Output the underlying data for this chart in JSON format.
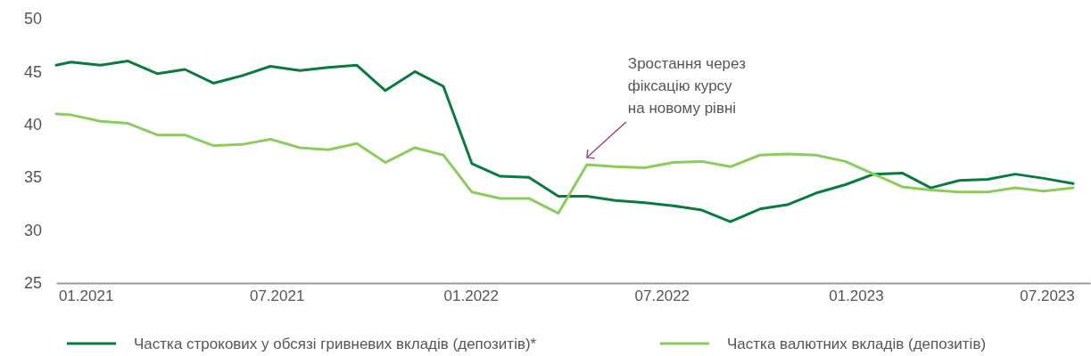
{
  "chart_data": {
    "type": "line",
    "x": [
      "2020-12-04",
      "2020-12-18",
      "2021-01-15",
      "2021-02-10",
      "2021-03-10",
      "2021-04-05",
      "2021-05-02",
      "2021-05-29",
      "2021-06-25",
      "2021-07-23",
      "2021-08-19",
      "2021-09-15",
      "2021-10-12",
      "2021-11-09",
      "2021-12-06",
      "2022-01-02",
      "2022-01-29",
      "2022-02-25",
      "2022-03-25",
      "2022-04-21",
      "2022-05-18",
      "2022-06-15",
      "2022-07-12",
      "2022-08-08",
      "2022-09-04",
      "2022-10-02",
      "2022-10-28",
      "2022-11-24",
      "2022-12-22",
      "2023-01-18",
      "2023-02-14",
      "2023-03-13",
      "2023-04-09",
      "2023-05-06",
      "2023-06-01",
      "2023-06-28",
      "2023-07-26"
    ],
    "series": [
      {
        "name": "Частка строкових у обсязі гривневих вкладів (депозитів)*",
        "color": "#0a7a3f",
        "values": [
          45.6,
          45.9,
          45.6,
          46.0,
          44.8,
          45.2,
          43.9,
          44.6,
          45.5,
          45.1,
          45.4,
          45.6,
          43.2,
          45.0,
          43.6,
          36.3,
          35.1,
          35.0,
          33.2,
          33.2,
          32.8,
          32.6,
          32.3,
          31.9,
          30.8,
          32.0,
          32.4,
          33.5,
          34.3,
          35.3,
          35.4,
          34.0,
          34.7,
          34.8,
          35.3,
          34.9,
          34.4
        ]
      },
      {
        "name": "Частка валютних вкладів (депозитів)",
        "color": "#8ccc5e",
        "values": [
          41.0,
          40.9,
          40.3,
          40.1,
          39.0,
          39.0,
          38.0,
          38.1,
          38.6,
          37.8,
          37.6,
          38.2,
          36.4,
          37.8,
          37.1,
          33.6,
          33.0,
          33.0,
          31.6,
          36.2,
          36.0,
          35.9,
          36.4,
          36.5,
          36.0,
          37.1,
          37.2,
          37.1,
          36.5,
          35.3,
          34.1,
          33.8,
          33.6,
          33.6,
          34.0,
          33.7,
          34.0
        ]
      }
    ],
    "xlim": [
      "2020-12-04",
      "2023-08-11"
    ],
    "xticks": [
      {
        "value": "2021-01",
        "label": "01.2021"
      },
      {
        "value": "2021-07",
        "label": "07.2021"
      },
      {
        "value": "2022-01",
        "label": "01.2022"
      },
      {
        "value": "2022-07",
        "label": "07.2022"
      },
      {
        "value": "2023-01",
        "label": "01.2023"
      },
      {
        "value": "2023-07",
        "label": "07.2023"
      }
    ],
    "ylim": [
      25,
      50
    ],
    "yticks": [
      25,
      30,
      35,
      40,
      45,
      50
    ],
    "grid": false,
    "legend": "bottom",
    "marker": "none",
    "line_style": "solid",
    "annotations": [
      {
        "text": "Зростання через\nфіксацію курсу\nна новому рівні",
        "x": "2022-04-21",
        "y": 36.2
      }
    ]
  }
}
